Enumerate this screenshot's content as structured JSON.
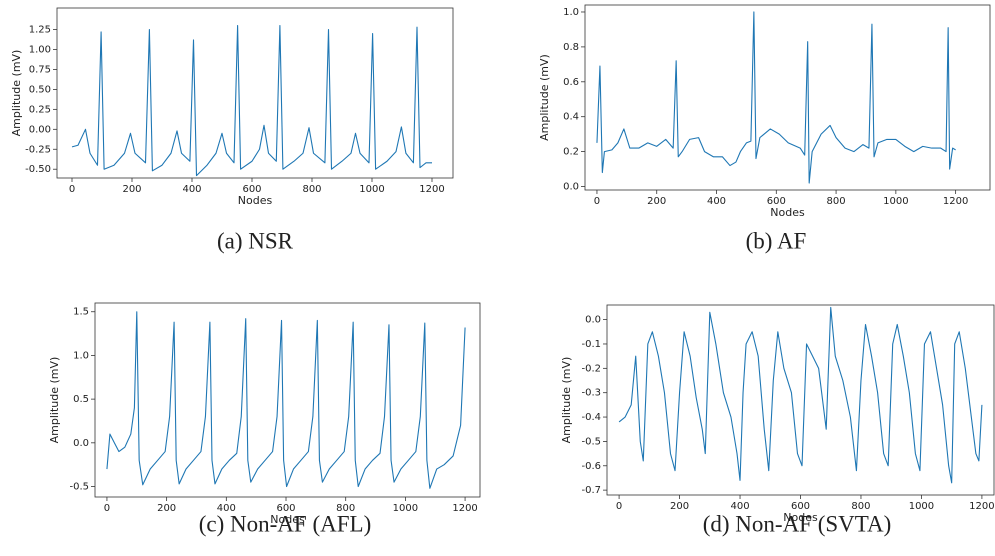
{
  "chart_data": [
    {
      "type": "line",
      "caption": "(a) NSR",
      "x_label": "Nodes",
      "y_label": "Amplitude (mV)",
      "xlim": [
        -50,
        1270
      ],
      "ylim": [
        -0.61,
        1.52
      ],
      "xticks": [
        0,
        200,
        400,
        600,
        800,
        1000,
        1200
      ],
      "yticks": [
        {
          "value": -0.5,
          "label": "-0.50"
        },
        -0.25,
        {
          "value": 0,
          "label": "0.00"
        },
        0.25,
        {
          "value": 0.5,
          "label": "0.50"
        },
        0.75,
        {
          "value": 1,
          "label": "1.00"
        },
        1.25
      ],
      "series": [
        {
          "color": "#1f77b4",
          "x": [
            0,
            20,
            45,
            60,
            85,
            97,
            107,
            140,
            175,
            195,
            210,
            245,
            258,
            268,
            300,
            330,
            350,
            365,
            393,
            405,
            415,
            450,
            480,
            500,
            515,
            540,
            552,
            562,
            600,
            625,
            640,
            655,
            681,
            693,
            703,
            740,
            770,
            790,
            805,
            843,
            855,
            865,
            900,
            930,
            945,
            960,
            990,
            1002,
            1012,
            1050,
            1080,
            1098,
            1113,
            1138,
            1150,
            1160,
            1180,
            1200
          ],
          "values": [
            -0.22,
            -0.2,
            0.0,
            -0.3,
            -0.45,
            1.22,
            -0.5,
            -0.45,
            -0.3,
            -0.05,
            -0.3,
            -0.42,
            1.25,
            -0.52,
            -0.45,
            -0.3,
            -0.02,
            -0.3,
            -0.4,
            1.12,
            -0.58,
            -0.45,
            -0.3,
            -0.05,
            -0.3,
            -0.42,
            1.3,
            -0.5,
            -0.4,
            -0.25,
            0.05,
            -0.3,
            -0.4,
            1.3,
            -0.5,
            -0.4,
            -0.3,
            0.02,
            -0.3,
            -0.42,
            1.25,
            -0.5,
            -0.4,
            -0.3,
            -0.05,
            -0.3,
            -0.42,
            1.2,
            -0.5,
            -0.4,
            -0.28,
            0.03,
            -0.3,
            -0.42,
            1.28,
            -0.48,
            -0.42,
            -0.42
          ]
        }
      ]
    },
    {
      "type": "line",
      "caption": "(b) AF",
      "x_label": "Nodes",
      "y_label": "Amplitude (mV)",
      "xlim": [
        -40,
        1315
      ],
      "ylim": [
        -0.02,
        1.04
      ],
      "xticks": [
        0,
        200,
        400,
        600,
        800,
        1000,
        1200
      ],
      "yticks": [
        {
          "value": 0,
          "label": "0.0"
        },
        0.2,
        0.4,
        0.6,
        0.8,
        {
          "value": 1,
          "label": "1.0"
        }
      ],
      "series": [
        {
          "color": "#1f77b4",
          "x": [
            0,
            10,
            18,
            25,
            50,
            70,
            90,
            110,
            140,
            170,
            200,
            230,
            255,
            265,
            272,
            285,
            310,
            340,
            360,
            390,
            420,
            445,
            465,
            480,
            500,
            515,
            525,
            532,
            545,
            580,
            610,
            640,
            680,
            695,
            705,
            710,
            720,
            750,
            780,
            800,
            830,
            860,
            890,
            910,
            920,
            927,
            940,
            970,
            1000,
            1030,
            1060,
            1090,
            1120,
            1150,
            1168,
            1175,
            1180,
            1190,
            1200
          ],
          "values": [
            0.25,
            0.69,
            0.08,
            0.2,
            0.21,
            0.25,
            0.33,
            0.22,
            0.22,
            0.25,
            0.23,
            0.27,
            0.22,
            0.72,
            0.17,
            0.2,
            0.27,
            0.28,
            0.2,
            0.17,
            0.17,
            0.12,
            0.14,
            0.2,
            0.25,
            0.26,
            1.0,
            0.16,
            0.28,
            0.33,
            0.3,
            0.25,
            0.22,
            0.18,
            0.83,
            0.02,
            0.2,
            0.3,
            0.35,
            0.28,
            0.22,
            0.2,
            0.24,
            0.22,
            0.93,
            0.17,
            0.25,
            0.27,
            0.27,
            0.23,
            0.2,
            0.23,
            0.22,
            0.22,
            0.2,
            0.91,
            0.1,
            0.22,
            0.21
          ]
        }
      ]
    },
    {
      "type": "line",
      "caption": "(c) Non-AF (AFL)",
      "x_label": "Nodes",
      "y_label": "Amplitude (mV)",
      "xlim": [
        -40,
        1250
      ],
      "ylim": [
        -0.62,
        1.6
      ],
      "xticks": [
        0,
        200,
        400,
        600,
        800,
        1000,
        1200
      ],
      "yticks": [
        -0.5,
        {
          "value": 0,
          "label": "0.0"
        },
        0.5,
        {
          "value": 1,
          "label": "1.0"
        },
        1.5
      ],
      "series": [
        {
          "color": "#1f77b4",
          "x": [
            0,
            10,
            25,
            40,
            60,
            80,
            92,
            100,
            108,
            120,
            145,
            170,
            195,
            210,
            225,
            232,
            242,
            265,
            290,
            315,
            330,
            345,
            352,
            362,
            385,
            410,
            435,
            450,
            465,
            472,
            482,
            505,
            530,
            555,
            570,
            585,
            592,
            602,
            625,
            650,
            675,
            690,
            705,
            712,
            722,
            745,
            770,
            795,
            810,
            825,
            832,
            842,
            865,
            890,
            915,
            930,
            945,
            952,
            962,
            985,
            1010,
            1035,
            1050,
            1065,
            1072,
            1082,
            1105,
            1130,
            1160,
            1185,
            1200
          ],
          "values": [
            -0.3,
            0.1,
            0.0,
            -0.1,
            -0.05,
            0.1,
            0.4,
            1.5,
            -0.2,
            -0.48,
            -0.3,
            -0.2,
            -0.1,
            0.3,
            1.38,
            -0.2,
            -0.47,
            -0.3,
            -0.2,
            -0.1,
            0.3,
            1.38,
            -0.2,
            -0.47,
            -0.3,
            -0.2,
            -0.12,
            0.3,
            1.42,
            -0.2,
            -0.45,
            -0.3,
            -0.2,
            -0.1,
            0.3,
            1.4,
            -0.2,
            -0.5,
            -0.3,
            -0.2,
            -0.1,
            0.3,
            1.4,
            -0.2,
            -0.45,
            -0.3,
            -0.2,
            -0.1,
            0.3,
            1.38,
            -0.2,
            -0.5,
            -0.3,
            -0.2,
            -0.12,
            0.3,
            1.35,
            -0.2,
            -0.45,
            -0.3,
            -0.2,
            -0.1,
            0.3,
            1.37,
            -0.2,
            -0.52,
            -0.3,
            -0.25,
            -0.15,
            0.2,
            1.32
          ]
        }
      ]
    },
    {
      "type": "line",
      "caption": "(d) Non-AF (SVTA)",
      "x_label": "Nodes",
      "y_label": "Amplitude (mV)",
      "xlim": [
        -40,
        1240
      ],
      "ylim": [
        -0.72,
        0.06
      ],
      "xticks": [
        0,
        200,
        400,
        600,
        800,
        1000,
        1200
      ],
      "yticks": [
        -0.7,
        -0.6,
        -0.5,
        -0.4,
        -0.3,
        -0.2,
        -0.1,
        {
          "value": 0,
          "label": "0.0"
        }
      ],
      "series": [
        {
          "color": "#1f77b4",
          "x": [
            0,
            20,
            40,
            55,
            70,
            80,
            95,
            110,
            130,
            150,
            170,
            185,
            200,
            215,
            235,
            255,
            275,
            285,
            300,
            320,
            345,
            370,
            390,
            400,
            410,
            420,
            440,
            460,
            480,
            495,
            510,
            525,
            545,
            570,
            590,
            605,
            620,
            640,
            660,
            685,
            700,
            715,
            740,
            765,
            785,
            800,
            815,
            835,
            855,
            875,
            890,
            905,
            920,
            940,
            960,
            980,
            995,
            1010,
            1030,
            1050,
            1070,
            1090,
            1100,
            1110,
            1125,
            1145,
            1165,
            1180,
            1190,
            1200
          ],
          "values": [
            -0.42,
            -0.4,
            -0.35,
            -0.15,
            -0.5,
            -0.58,
            -0.1,
            -0.05,
            -0.15,
            -0.3,
            -0.55,
            -0.62,
            -0.3,
            -0.05,
            -0.15,
            -0.32,
            -0.45,
            -0.55,
            0.03,
            -0.1,
            -0.3,
            -0.4,
            -0.55,
            -0.66,
            -0.3,
            -0.1,
            -0.05,
            -0.15,
            -0.45,
            -0.62,
            -0.25,
            -0.05,
            -0.2,
            -0.3,
            -0.55,
            -0.6,
            -0.1,
            -0.15,
            -0.2,
            -0.45,
            0.05,
            -0.15,
            -0.25,
            -0.4,
            -0.62,
            -0.25,
            -0.02,
            -0.15,
            -0.3,
            -0.55,
            -0.6,
            -0.1,
            -0.02,
            -0.15,
            -0.3,
            -0.55,
            -0.62,
            -0.1,
            -0.05,
            -0.2,
            -0.35,
            -0.6,
            -0.67,
            -0.1,
            -0.05,
            -0.2,
            -0.4,
            -0.55,
            -0.58,
            -0.35
          ]
        }
      ]
    }
  ]
}
